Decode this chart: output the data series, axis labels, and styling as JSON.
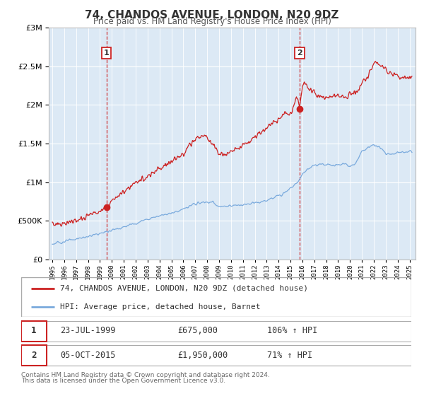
{
  "title": "74, CHANDOS AVENUE, LONDON, N20 9DZ",
  "subtitle": "Price paid vs. HM Land Registry's House Price Index (HPI)",
  "hpi_color": "#7aaadd",
  "price_color": "#cc2222",
  "background_color": "#dce9f5",
  "plot_bg": "#ffffff",
  "sale1_date": 1999.55,
  "sale1_price": 675000,
  "sale2_date": 2015.76,
  "sale2_price": 1950000,
  "ylim": [
    0,
    3000000
  ],
  "xlim_start": 1994.7,
  "xlim_end": 2025.5,
  "legend_line1": "74, CHANDOS AVENUE, LONDON, N20 9DZ (detached house)",
  "legend_line2": "HPI: Average price, detached house, Barnet",
  "sale1_date_str": "23-JUL-1999",
  "sale1_price_str": "£675,000",
  "sale1_hpi_str": "106% ↑ HPI",
  "sale2_date_str": "05-OCT-2015",
  "sale2_price_str": "£1,950,000",
  "sale2_hpi_str": "71% ↑ HPI",
  "footer1": "Contains HM Land Registry data © Crown copyright and database right 2024.",
  "footer2": "This data is licensed under the Open Government Licence v3.0.",
  "hpi_anchors_x": [
    1995.0,
    1996.0,
    1997.0,
    1998.0,
    1999.0,
    2000.0,
    2001.0,
    2002.0,
    2003.0,
    2004.0,
    2005.0,
    2006.0,
    2007.0,
    2007.8,
    2008.5,
    2009.0,
    2009.5,
    2010.0,
    2010.5,
    2011.0,
    2011.5,
    2012.0,
    2012.5,
    2013.0,
    2013.5,
    2014.0,
    2014.5,
    2015.0,
    2015.5,
    2016.0,
    2016.5,
    2017.0,
    2017.5,
    2018.0,
    2018.5,
    2019.0,
    2019.5,
    2020.0,
    2020.5,
    2021.0,
    2021.5,
    2022.0,
    2022.5,
    2023.0,
    2023.5,
    2024.0,
    2024.5,
    2025.0
  ],
  "hpi_anchors_y": [
    200000,
    230000,
    265000,
    295000,
    335000,
    380000,
    420000,
    470000,
    520000,
    570000,
    600000,
    650000,
    720000,
    740000,
    740000,
    680000,
    680000,
    690000,
    700000,
    710000,
    720000,
    730000,
    740000,
    760000,
    790000,
    830000,
    870000,
    930000,
    980000,
    1100000,
    1180000,
    1220000,
    1230000,
    1230000,
    1220000,
    1230000,
    1240000,
    1210000,
    1250000,
    1400000,
    1450000,
    1480000,
    1450000,
    1370000,
    1360000,
    1380000,
    1390000,
    1400000
  ],
  "price_anchors_x": [
    1995.0,
    1996.0,
    1997.0,
    1998.0,
    1999.0,
    1999.55,
    2000.0,
    2001.0,
    2002.0,
    2003.0,
    2004.0,
    2005.0,
    2006.0,
    2007.0,
    2007.8,
    2008.5,
    2009.0,
    2009.5,
    2010.0,
    2010.5,
    2011.0,
    2011.5,
    2012.0,
    2012.5,
    2013.0,
    2013.5,
    2014.0,
    2014.5,
    2015.0,
    2015.5,
    2015.76,
    2016.0,
    2016.2,
    2016.5,
    2017.0,
    2017.5,
    2018.0,
    2018.5,
    2019.0,
    2019.5,
    2020.0,
    2020.5,
    2021.0,
    2021.5,
    2022.0,
    2022.5,
    2023.0,
    2023.5,
    2024.0,
    2024.5,
    2025.0
  ],
  "price_anchors_y": [
    450000,
    465000,
    500000,
    560000,
    630000,
    675000,
    750000,
    870000,
    980000,
    1080000,
    1180000,
    1260000,
    1380000,
    1560000,
    1620000,
    1500000,
    1380000,
    1350000,
    1400000,
    1430000,
    1470000,
    1530000,
    1580000,
    1630000,
    1700000,
    1760000,
    1820000,
    1880000,
    1880000,
    2100000,
    1950000,
    2250000,
    2320000,
    2200000,
    2150000,
    2100000,
    2080000,
    2100000,
    2120000,
    2100000,
    2130000,
    2180000,
    2280000,
    2350000,
    2540000,
    2520000,
    2460000,
    2400000,
    2380000,
    2350000,
    2350000
  ]
}
